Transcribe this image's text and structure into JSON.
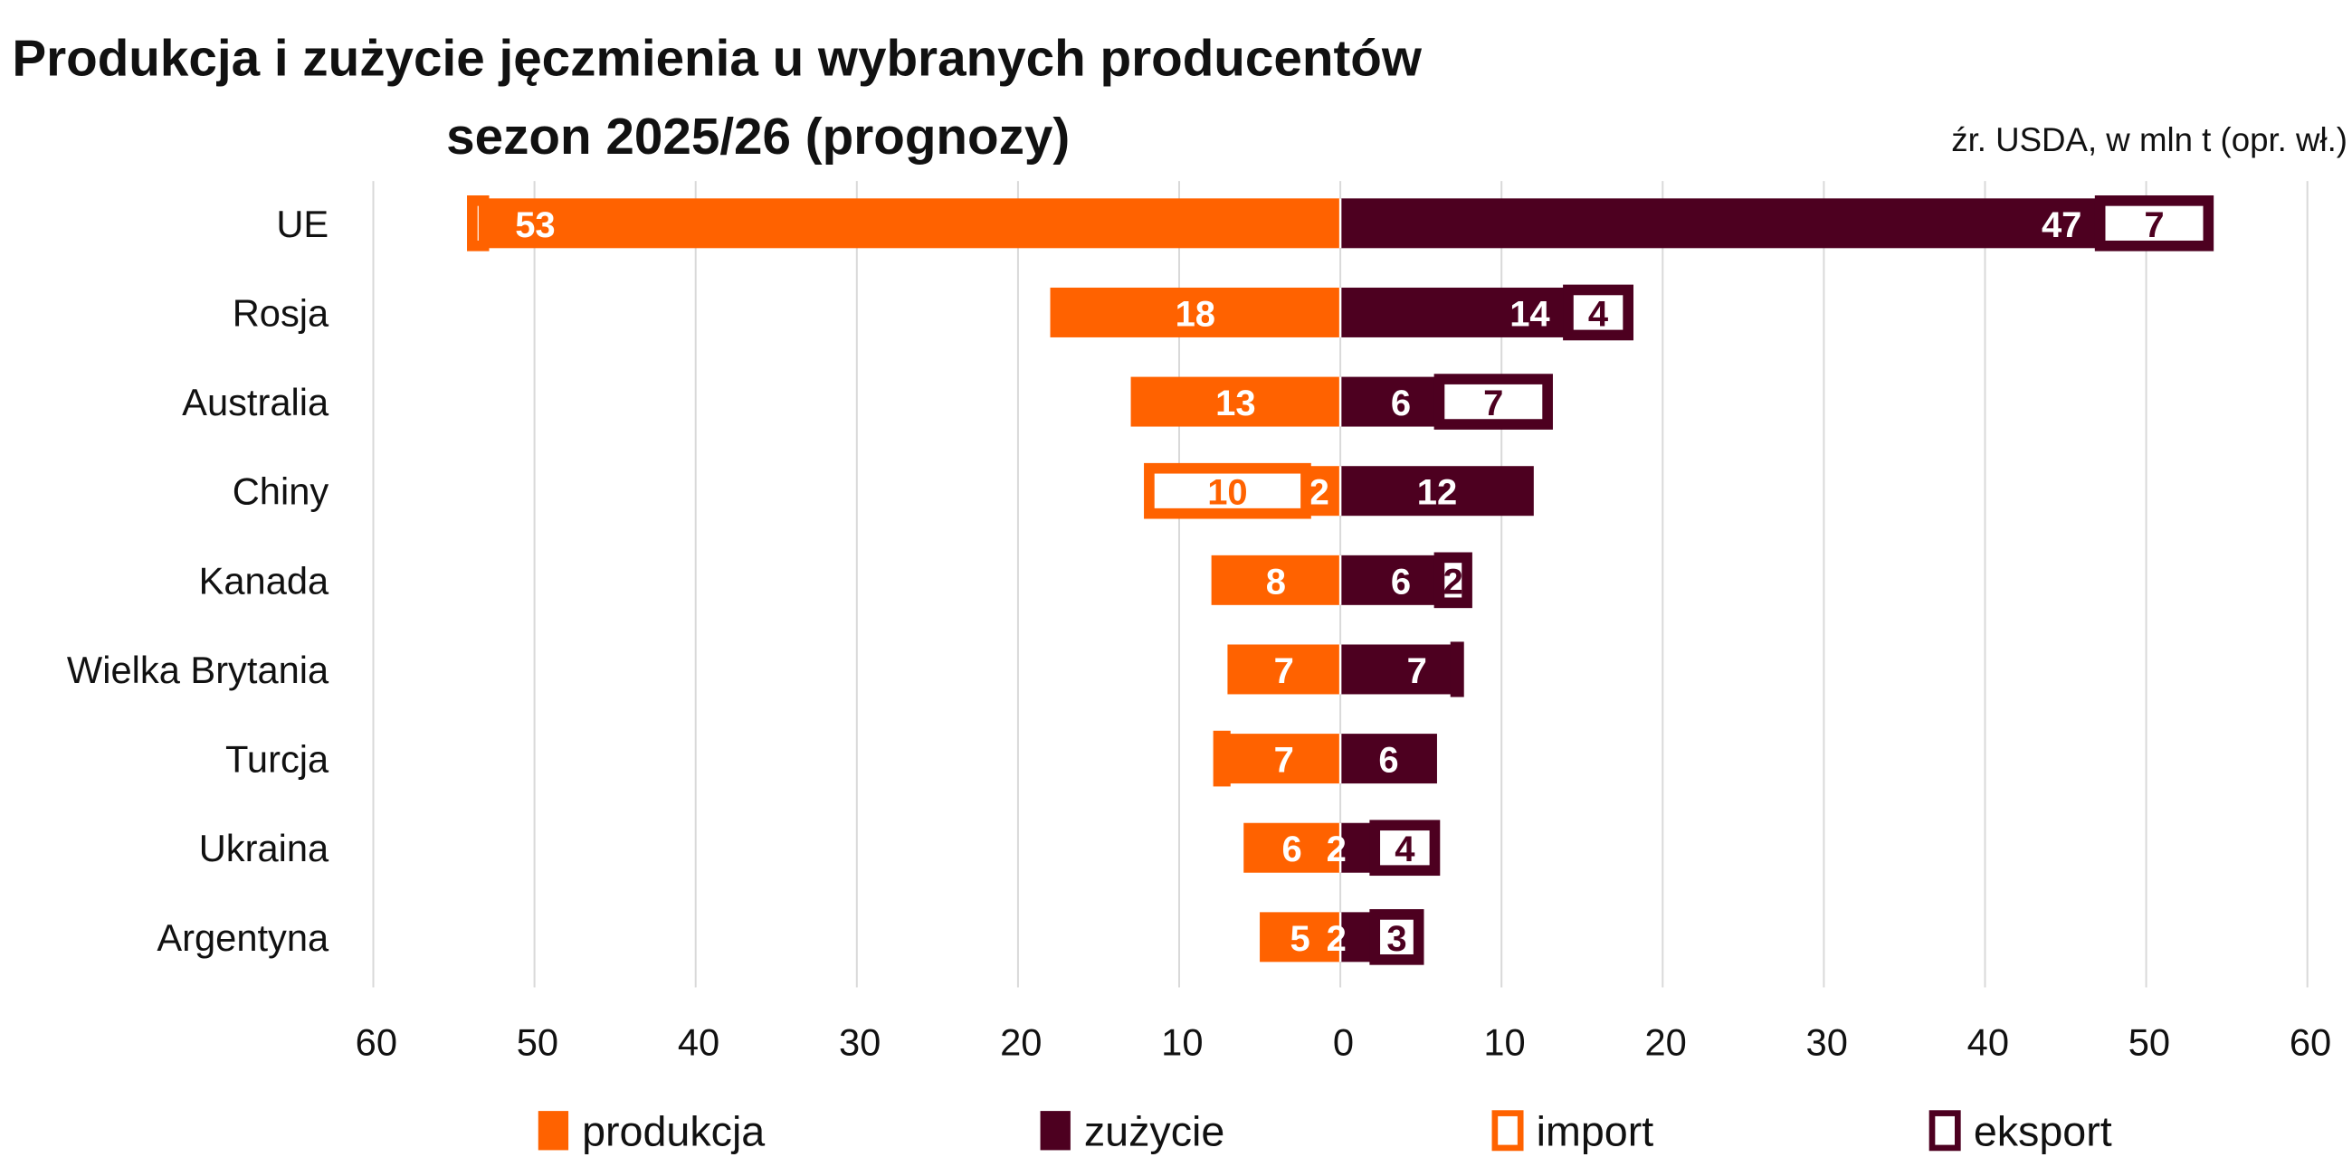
{
  "chart_data": {
    "type": "bar",
    "orientation": "horizontal-diverging-stacked",
    "title": "Produkcja i zużycie jęczmienia u wybranych producentów",
    "subtitle": "sezon 2025/26 (prognozy)",
    "source": "źr. USDA, w mln t (opr. wł.)",
    "categories": [
      "UE",
      "Rosja",
      "Australia",
      "Chiny",
      "Kanada",
      "Wielka Brytania",
      "Turcja",
      "Ukraina",
      "Argentyna"
    ],
    "xlim": [
      -60,
      60
    ],
    "xticks": [
      "60",
      "50",
      "40",
      "30",
      "20",
      "10",
      "0",
      "10",
      "20",
      "30",
      "40",
      "50",
      "60"
    ],
    "grid": true,
    "legend_position": "bottom",
    "series": [
      {
        "name": "produkcja",
        "side": "left",
        "values": [
          53,
          18,
          13,
          2,
          8,
          7,
          7,
          6,
          5
        ],
        "labels": [
          "53",
          "18",
          "13",
          "2",
          "8",
          "7",
          "7",
          "6",
          "5"
        ]
      },
      {
        "name": "import",
        "side": "left",
        "values": [
          1,
          0,
          0,
          10,
          0,
          0,
          0.7,
          0,
          0
        ],
        "labels": [
          "",
          "",
          "",
          "10",
          "",
          "",
          "",
          "",
          ""
        ]
      },
      {
        "name": "zużycie",
        "side": "right",
        "values": [
          47,
          14,
          6,
          12,
          6,
          7,
          6,
          2,
          2
        ],
        "labels": [
          "47",
          "14",
          "6",
          "12",
          "6",
          "7",
          "6",
          "2",
          "2"
        ]
      },
      {
        "name": "eksport",
        "side": "right",
        "values": [
          7,
          4,
          7,
          0,
          2,
          0.5,
          0,
          4,
          3
        ],
        "labels": [
          "7",
          "4",
          "7",
          "",
          "2",
          "",
          "",
          "4",
          "3"
        ]
      }
    ],
    "colors": {
      "produkcja": "#ff6200",
      "zużycie": "#4d0020",
      "import": "#ff6200",
      "eksport": "#4d0020"
    }
  }
}
